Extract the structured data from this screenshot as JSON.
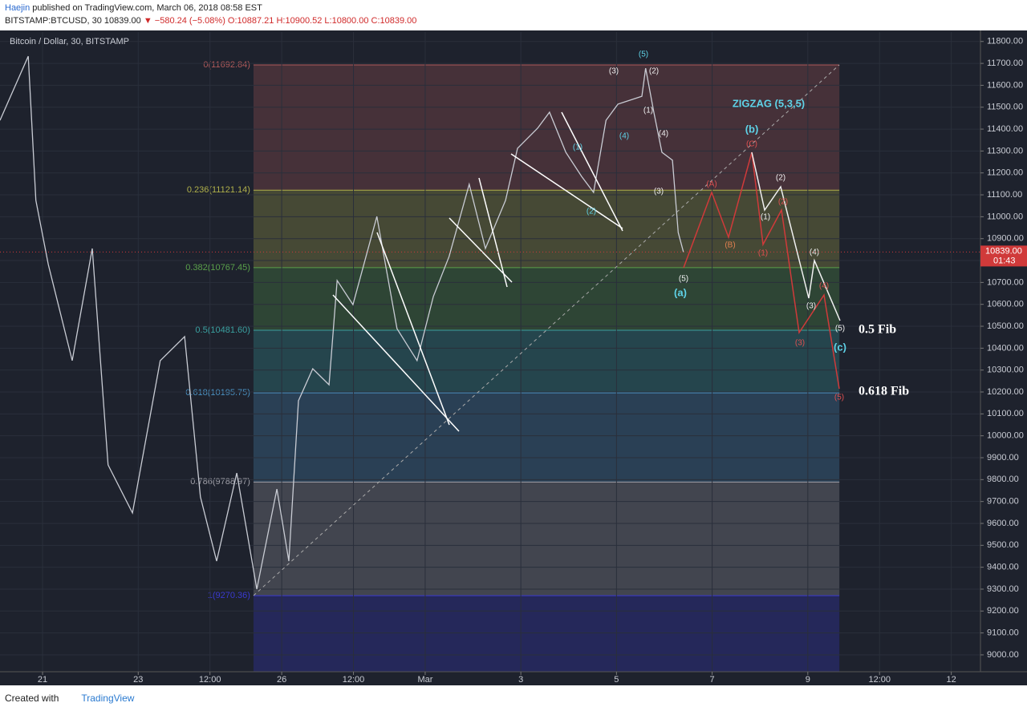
{
  "header": {
    "author": "Haejin",
    "published": "published on TradingView.com, March 06, 2018 08:58 EST",
    "symbol": "BITSTAMP:BTCUSD, 30",
    "last": "10839.00",
    "change": "▼ −580.24 (−5.08%)",
    "ohlc": "O:10887.21 H:10900.52 L:10800.00 C:10839.00"
  },
  "footer": {
    "created": "Created with",
    "brand": "TradingView"
  },
  "chart_data": {
    "type": "line",
    "series": [
      {
        "name": "Bitcoin / Dollar, 30, BITSTAMP",
        "color": "#c9ccd4",
        "x": [
          0.11,
          0.7,
          0.86,
          1.12,
          1.62,
          2.04,
          2.37,
          2.88,
          3.46,
          3.97,
          4.3,
          4.64,
          5.06,
          5.48,
          5.9,
          6.15,
          6.35,
          6.65,
          6.99,
          7.16,
          7.49,
          7.99,
          8.41,
          8.83,
          9.17,
          9.5,
          9.92,
          10.26,
          10.68,
          10.93,
          11.35,
          11.6,
          11.94,
          12.27,
          12.52,
          12.78,
          13.03,
          13.28,
          13.53,
          13.61,
          13.78,
          13.95,
          14.17,
          14.29,
          14.4
        ],
        "values": [
          11440,
          11733,
          11075,
          10782,
          10343,
          10855,
          9867,
          9648,
          10343,
          10453,
          9721,
          9428,
          9830,
          9300,
          9757,
          9428,
          10160,
          10306,
          10233,
          10709,
          10599,
          11001,
          10489,
          10343,
          10636,
          10818,
          11148,
          10855,
          11075,
          11312,
          11404,
          11477,
          11294,
          11184,
          11111,
          11440,
          11514,
          11532,
          11550,
          11678,
          11477,
          11294,
          11258,
          10928,
          10839
        ]
      }
    ],
    "xlim": [
      0.11,
      20.61
    ],
    "xticks": [
      {
        "value": 1,
        "label": "21"
      },
      {
        "value": 3,
        "label": "23"
      },
      {
        "value": 4.5,
        "label": "12:00"
      },
      {
        "value": 6,
        "label": "26"
      },
      {
        "value": 7.5,
        "label": "12:00"
      },
      {
        "value": 9,
        "label": "Mar"
      },
      {
        "value": 11,
        "label": "3"
      },
      {
        "value": 13,
        "label": "5"
      },
      {
        "value": 15,
        "label": "7"
      },
      {
        "value": 17,
        "label": "9"
      },
      {
        "value": 18.5,
        "label": "12:00"
      },
      {
        "value": 20,
        "label": "12"
      }
    ],
    "ylim": [
      8923,
      11843
    ],
    "yticks": [
      {
        "value": 9000,
        "label": "9000.00"
      },
      {
        "value": 9100,
        "label": "9100.00"
      },
      {
        "value": 9200,
        "label": "9200.00"
      },
      {
        "value": 9300,
        "label": "9300.00"
      },
      {
        "value": 9400,
        "label": "9400.00"
      },
      {
        "value": 9500,
        "label": "9500.00"
      },
      {
        "value": 9600,
        "label": "9600.00"
      },
      {
        "value": 9700,
        "label": "9700.00"
      },
      {
        "value": 9800,
        "label": "9800.00"
      },
      {
        "value": 9900,
        "label": "9900.00"
      },
      {
        "value": 10000,
        "label": "10000.00"
      },
      {
        "value": 10100,
        "label": "10100.00"
      },
      {
        "value": 10200,
        "label": "10200.00"
      },
      {
        "value": 10300,
        "label": "10300.00"
      },
      {
        "value": 10400,
        "label": "10400.00"
      },
      {
        "value": 10500,
        "label": "10500.00"
      },
      {
        "value": 10600,
        "label": "10600.00"
      },
      {
        "value": 10700,
        "label": "10700.00"
      },
      {
        "value": 10800,
        "label": "10800.00"
      },
      {
        "value": 10900,
        "label": "10900.00"
      },
      {
        "value": 11000,
        "label": "11000.00"
      },
      {
        "value": 11100,
        "label": "11100.00"
      },
      {
        "value": 11200,
        "label": "11200.00"
      },
      {
        "value": 11300,
        "label": "11300.00"
      },
      {
        "value": 11400,
        "label": "11400.00"
      },
      {
        "value": 11500,
        "label": "11500.00"
      },
      {
        "value": 11600,
        "label": "11600.00"
      },
      {
        "value": 11700,
        "label": "11700.00"
      },
      {
        "value": 11800,
        "label": "11800.00"
      }
    ],
    "grid": true,
    "last_price": {
      "value": 10839,
      "label": "10839.00"
    },
    "countdown": "01:43",
    "fib_xlim": [
      5.41,
      17.66
    ],
    "fib_levels": [
      {
        "value": 11692.84,
        "label": "0(11692.84)"
      },
      {
        "value": 11121.14,
        "label": "0.236(11121.14)"
      },
      {
        "value": 10767.45,
        "label": "0.382(10767.45)"
      },
      {
        "value": 10481.6,
        "label": "0.5(10481.60)"
      },
      {
        "value": 10195.75,
        "label": "0.618(10195.75)"
      },
      {
        "value": 9788.97,
        "label": "0.786(9788.97)"
      },
      {
        "value": 9270.36,
        "label": "1(9270.36)"
      }
    ],
    "fib_colors": [
      "#b05a5a",
      "#b0b04a",
      "#5aa04a",
      "#3aa0a0",
      "#4a90c0",
      "#a0a0a8",
      "#3a3ad0"
    ],
    "annotations": [
      "(5)",
      "(3)",
      "(2)",
      "(1)",
      "(4)",
      "(4)",
      "(1)",
      "(2)",
      "(3)",
      "(5)",
      "(a)",
      "ZIGZAG (5,3,5)",
      "(b)",
      "(C)",
      "(A)",
      "(B)",
      "(2)",
      "(1)",
      "(2)",
      "(1)",
      "(4)",
      "(3)",
      "(4)",
      "(5)",
      "(3)",
      "(c)",
      "(5)",
      "0.5 Fib",
      "0.618 Fib"
    ]
  }
}
